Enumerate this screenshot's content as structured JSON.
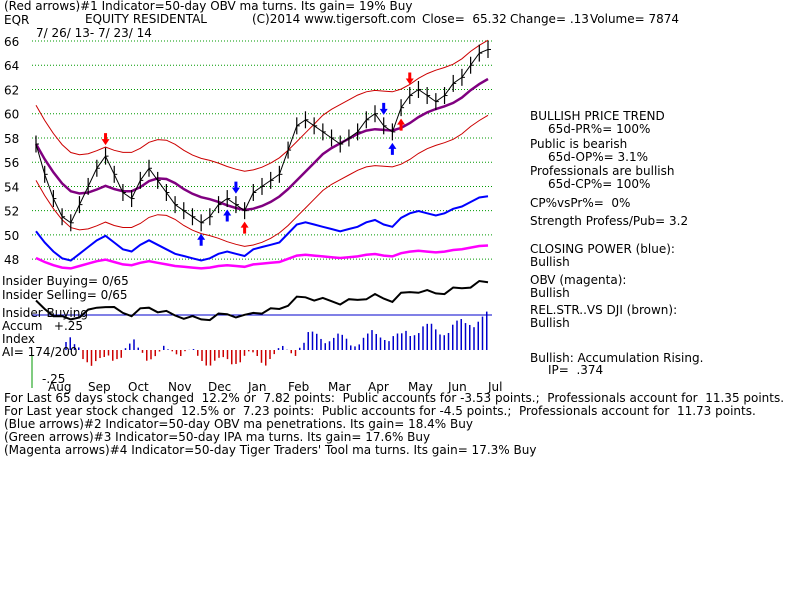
{
  "header": {
    "line1": "(Red arrows)#1 Indicator=50-day OBV ma turns. Its gain= 19% Buy",
    "ticker": "EQR",
    "company": "EQUITY RESIDENTAL",
    "copyright": "(C)2014 www.tigersoft.com",
    "close": "Close=  65.32",
    "change": "Change= .13",
    "volume": "Volume= 7874",
    "date_range": "7/ 26/ 13- 7/ 23/ 14"
  },
  "left_labels": {
    "insider_buying_1": "Insider Buying= 0/65",
    "insider_selling": "Insider Selling= 0/65",
    "insider_buying_2": "Insider Buying",
    "accum_index": "Accum   +.25",
    "index": "Index",
    "ai": "AI= 174/200",
    "minus25": "-.25"
  },
  "right_panel": {
    "trend_title": "BULLISH PRICE TREND",
    "pr": "65d-PR%= 100%",
    "public": "Public is bearish",
    "op": "65d-OP%= 3.1%",
    "professionals": "Professionals are bullish",
    "cp": "65d-CP%= 100%",
    "cpvspr": "CP%vsPr%=  0%",
    "strength": "Strength Profess/Pub= 3.2",
    "closing_power": "CLOSING POWER (blue):",
    "closing_power_val": "Bullish",
    "obv": "OBV (magenta):",
    "obv_val": "Bullish",
    "relstr": "REL.STR..VS DJI (brown):",
    "relstr_val": "Bullish",
    "accum": "Bullish: Accumulation Rising.",
    "ip": "IP=  .374"
  },
  "footer": {
    "line1": "For Last 65 days stock changed  12.2% or  7.82 points:  Public accounts for -3.53 points.;  Professionals account for  11.35 points.",
    "line2": "For Last year stock changed  12.5% or  7.23 points:  Public accounts for -4.5 points.;  Professionals account for  11.73 points.",
    "line3": "(Blue arrows)#2 Indicator=50-day OBV ma penetrations. Its gain= 18.4% Buy",
    "line4": "(Green arrows)#3 Indicator=50-day IPA ma turns. Its gain= 17.6% Buy",
    "line5": "(Magenta arrows)#4 Indicator=50-day Tiger Traders' Tool ma turns. Its gain= 17.3% Buy"
  },
  "colors": {
    "bands": "#cc0000",
    "ma": "#800080",
    "closing_power": "#0000ff",
    "obv": "#ff00ff",
    "rel_str": "#000000",
    "grid": "#009900",
    "accum_pos": "#0000cc",
    "accum_neg": "#cc0000",
    "arrow_red": "#ff0000",
    "arrow_blue": "#0000ff"
  },
  "chart_data": {
    "type": "line",
    "ylim": [
      49,
      67
    ],
    "y_ticks": [
      66,
      64,
      62,
      60,
      58,
      56,
      54,
      52,
      50,
      48
    ],
    "x_tick_labels": [
      "Aug",
      "Sep",
      "Oct",
      "Nov",
      "Dec",
      "Jan",
      "Feb",
      "Mar",
      "Apr",
      "May",
      "Jun",
      "Jul"
    ],
    "grid": true,
    "price_close": [
      57.5,
      55.0,
      53.0,
      51.5,
      51.0,
      52.5,
      54.0,
      55.5,
      56.5,
      55.0,
      53.5,
      53.0,
      54.5,
      55.5,
      54.5,
      53.5,
      52.5,
      52.0,
      51.5,
      51.0,
      51.5,
      52.5,
      53.0,
      52.5,
      52.0,
      53.5,
      54.0,
      54.5,
      55.0,
      57.0,
      59.0,
      59.5,
      59.0,
      58.5,
      58.0,
      57.5,
      58.0,
      58.5,
      59.5,
      60.0,
      59.0,
      58.5,
      60.5,
      61.5,
      62.0,
      61.5,
      61.0,
      61.5,
      62.5,
      63.0,
      64.0,
      65.0,
      65.3
    ]
  }
}
